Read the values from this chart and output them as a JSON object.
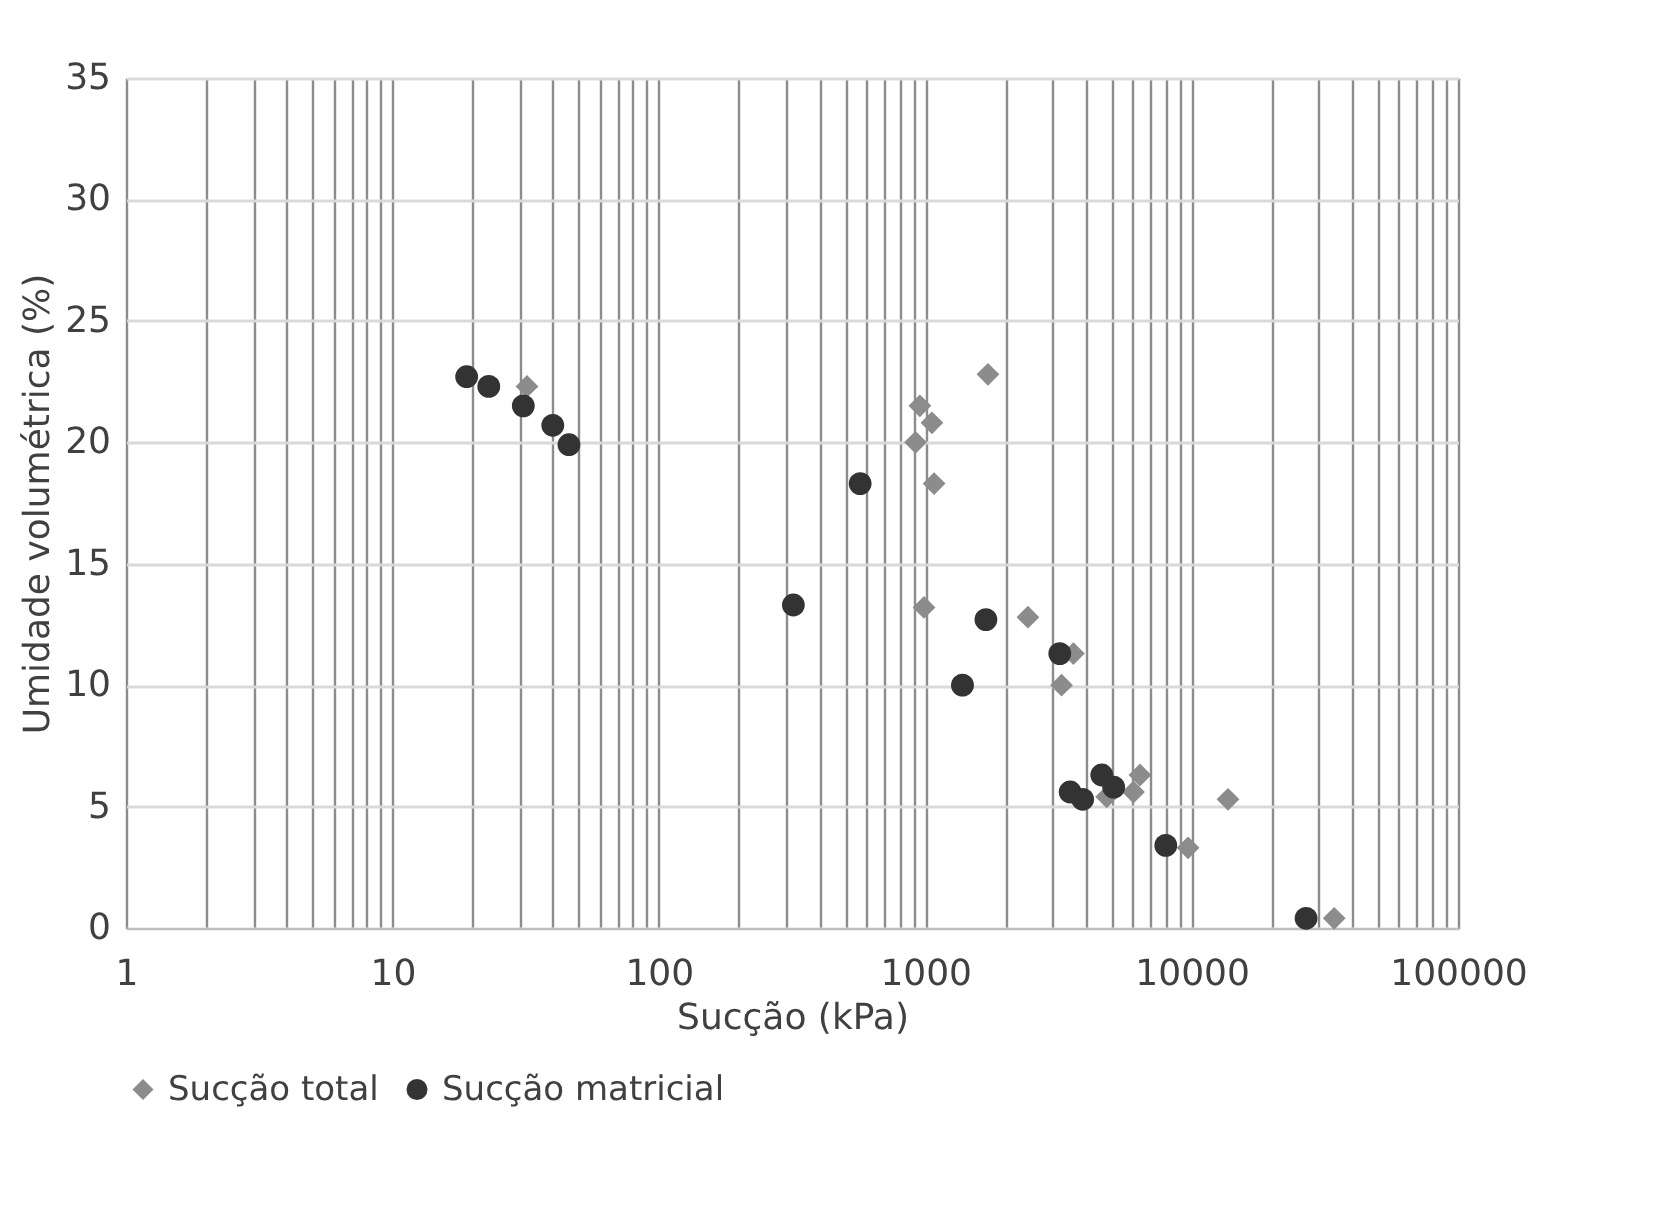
{
  "chart_data": {
    "type": "scatter",
    "xlabel": "Sucção (kPa)",
    "ylabel": "Umidade volumétrica (%)",
    "log": "x",
    "xlim": [
      1,
      100000
    ],
    "ylim": [
      0,
      35
    ],
    "yticks": [
      0,
      5,
      10,
      15,
      20,
      25,
      30,
      35
    ],
    "xticks": [
      1,
      {
        "value": 2,
        "label": null
      },
      {
        "value": 3,
        "label": null
      },
      {
        "value": 4,
        "label": null
      },
      {
        "value": 5,
        "label": null
      },
      {
        "value": 6,
        "label": null
      },
      {
        "value": 7,
        "label": null
      },
      {
        "value": 8,
        "label": null
      },
      {
        "value": 9,
        "label": null
      },
      10,
      {
        "value": 20,
        "label": null
      },
      {
        "value": 30,
        "label": null
      },
      {
        "value": 40,
        "label": null
      },
      {
        "value": 50,
        "label": null
      },
      {
        "value": 60,
        "label": null
      },
      {
        "value": 70,
        "label": null
      },
      {
        "value": 80,
        "label": null
      },
      {
        "value": 90,
        "label": null
      },
      100,
      {
        "value": 200,
        "label": null
      },
      {
        "value": 300,
        "label": null
      },
      {
        "value": 400,
        "label": null
      },
      {
        "value": 500,
        "label": null
      },
      {
        "value": 600,
        "label": null
      },
      {
        "value": 700,
        "label": null
      },
      {
        "value": 800,
        "label": null
      },
      {
        "value": 900,
        "label": null
      },
      1000,
      {
        "value": 2000,
        "label": null
      },
      {
        "value": 3000,
        "label": null
      },
      {
        "value": 4000,
        "label": null
      },
      {
        "value": 5000,
        "label": null
      },
      {
        "value": 6000,
        "label": null
      },
      {
        "value": 7000,
        "label": null
      },
      {
        "value": 8000,
        "label": null
      },
      {
        "value": 9000,
        "label": null
      },
      10000,
      {
        "value": 20000,
        "label": null
      },
      {
        "value": 30000,
        "label": null
      },
      {
        "value": 40000,
        "label": null
      },
      {
        "value": 50000,
        "label": null
      },
      {
        "value": 60000,
        "label": null
      },
      {
        "value": 70000,
        "label": null
      },
      {
        "value": 80000,
        "label": null
      },
      {
        "value": 90000,
        "label": null
      },
      100000
    ],
    "grid": true,
    "legend": "bottom",
    "series": [
      {
        "name": "Sucção total",
        "color": "#8c8c8c",
        "marker": "diamond",
        "x": [
          32,
          1720,
          955,
          1060,
          920,
          1080,
          990,
          2430,
          3600,
          3250,
          6400,
          6050,
          4800,
          13700,
          9700,
          34300
        ],
        "values": [
          22.3,
          22.8,
          21.5,
          20.8,
          20.0,
          18.3,
          13.2,
          12.8,
          11.3,
          10.0,
          6.3,
          5.6,
          5.4,
          5.3,
          3.3,
          0.4
        ]
      },
      {
        "name": "Sucção matricial",
        "color": "#333333",
        "marker": "circle",
        "x": [
          19,
          23,
          31,
          40,
          46,
          570,
          320,
          1690,
          3200,
          1380,
          3500,
          3900,
          4600,
          5100,
          8000,
          26900
        ],
        "values": [
          22.7,
          22.3,
          21.5,
          20.7,
          19.9,
          18.3,
          13.3,
          12.7,
          11.3,
          10.0,
          5.6,
          5.3,
          6.3,
          5.8,
          3.4,
          0.4
        ]
      }
    ]
  }
}
